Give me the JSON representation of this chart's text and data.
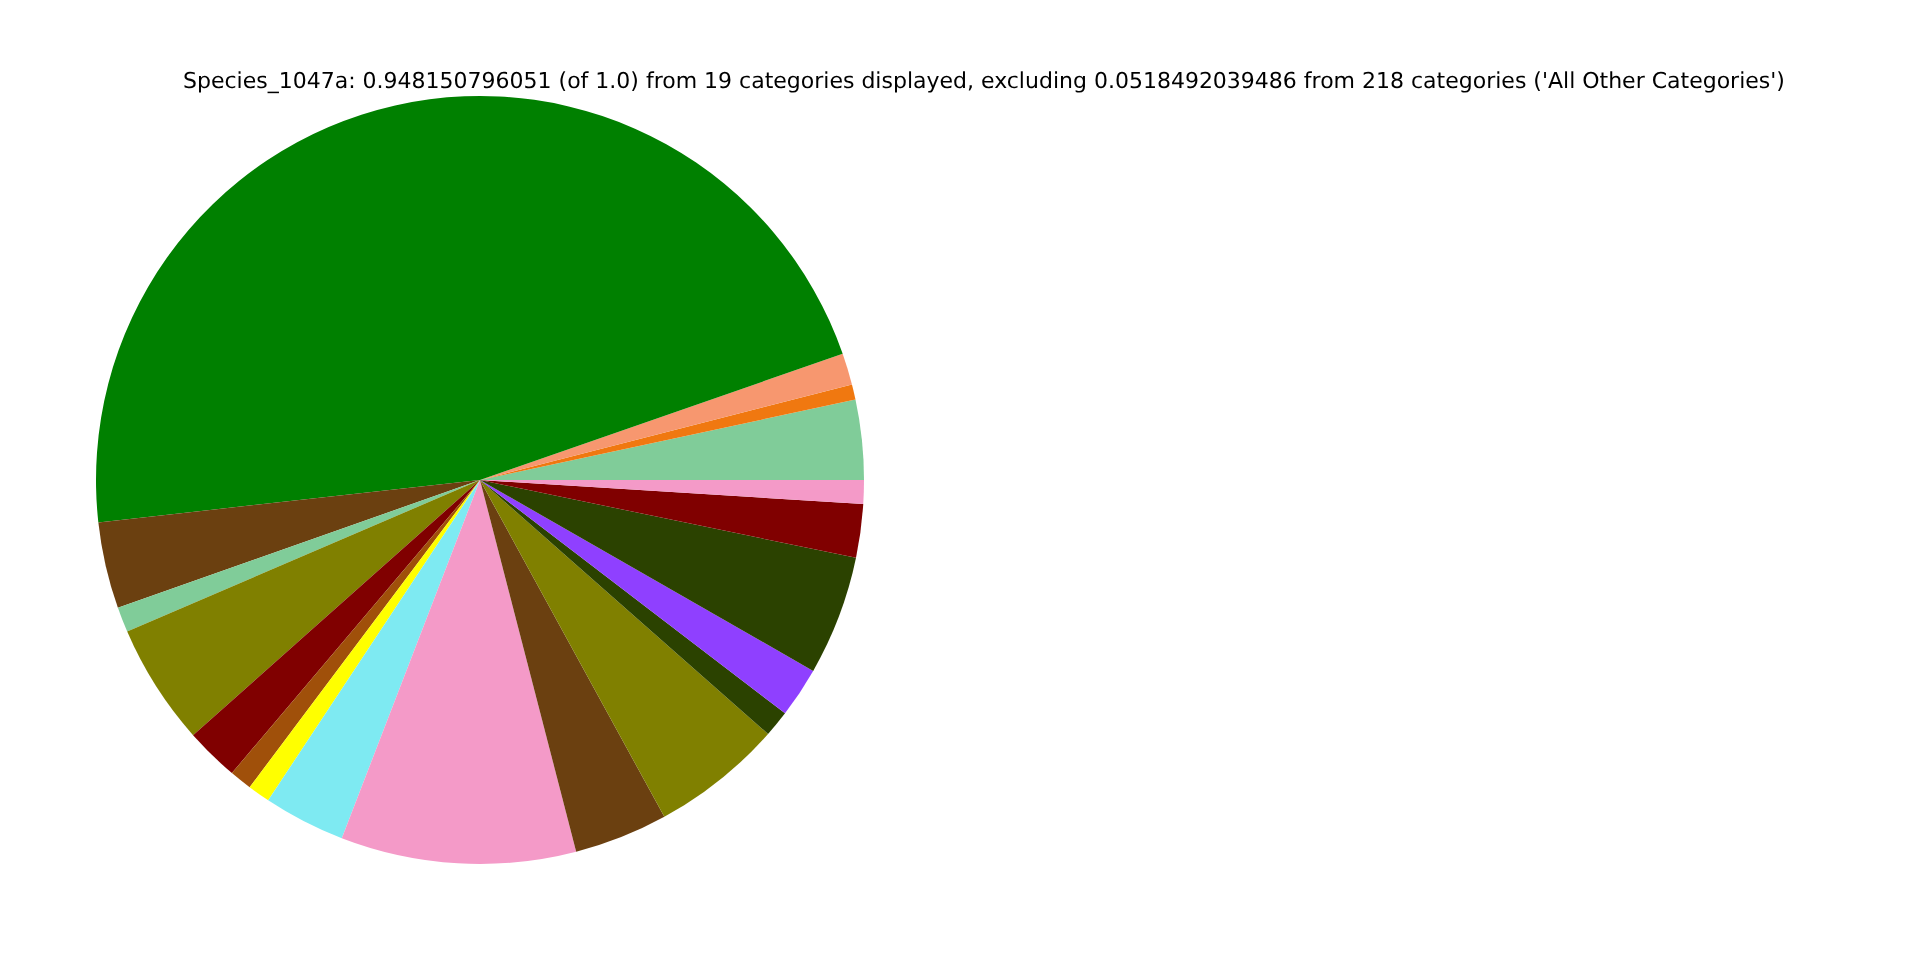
{
  "chart_data": {
    "type": "pie",
    "title": "Species_1047a: 0.948150796051 (of 1.0) from 19 categories displayed, excluding 0.0518492039486 from 218 categories ('All Other Categories')",
    "categories": [
      null,
      null,
      null,
      null,
      null,
      null,
      null,
      null,
      null,
      null,
      null,
      null,
      null,
      null,
      null,
      null,
      null,
      null,
      null
    ],
    "values": [
      3.36,
      0.64,
      1.33,
      46.43,
      3.64,
      1.06,
      5.11,
      2.25,
      0.94,
      0.94,
      3.44,
      9.89,
      3.94,
      5.53,
      1.11,
      2.11,
      5.03,
      2.25,
      1.0
    ],
    "colors": [
      "#80cc99",
      "#f07810",
      "#f7976f",
      "#008000",
      "#6b4010",
      "#80cc99",
      "#808000",
      "#800000",
      "#a0500a",
      "#ffff00",
      "#7eeaf2",
      "#f49ac8",
      "#6b4010",
      "#808000",
      "#2b4200",
      "#8f40ff",
      "#2b4200",
      "#800000",
      "#f49ac8"
    ]
  }
}
